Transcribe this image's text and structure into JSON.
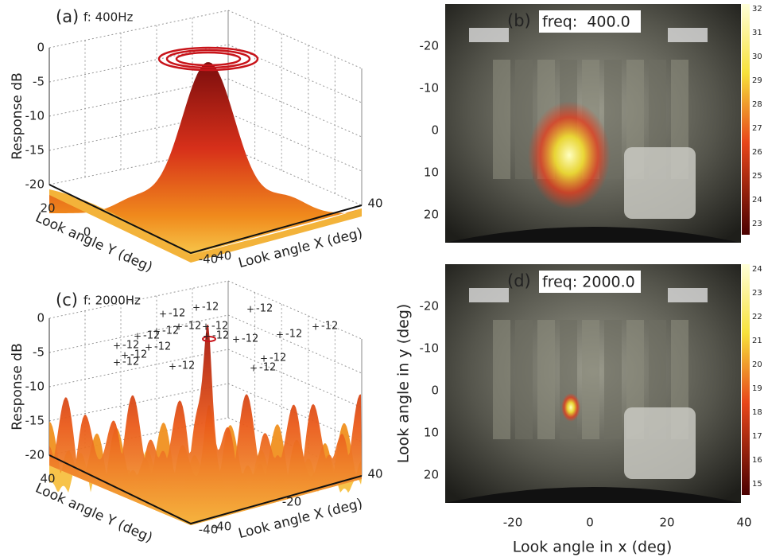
{
  "panels": [
    {
      "label": "(a)",
      "title": "f: 400Hz",
      "z_label": "Response dB",
      "y_label": "Look angle Y (deg)",
      "x_label": "Look angle X (deg)",
      "z_ticks": [
        0,
        -5,
        -10,
        -15,
        -20
      ],
      "y_ticks": [
        20,
        0,
        -40
      ],
      "x_ticks": [
        -40,
        40
      ]
    },
    {
      "label": "(b)",
      "freq": "freq:  400.0",
      "y_ticks": [
        -20,
        -10,
        0,
        10,
        20
      ],
      "colorbar_ticks": [
        32,
        31,
        30,
        29,
        28,
        27,
        26,
        25,
        24,
        23
      ]
    },
    {
      "label": "(c)",
      "title": "f: 2000Hz",
      "z_label": "Response dB",
      "y_label": "Look angle Y (deg)",
      "x_label": "Look angle X (deg)",
      "z_ticks": [
        0,
        -5,
        -10,
        -15,
        -20
      ],
      "y_ticks": [
        40,
        -40
      ],
      "x_ticks": [
        -40,
        -20,
        40
      ],
      "contour_labels": [
        -12,
        -12,
        -12,
        -12,
        -12,
        -12,
        -12,
        -12,
        -12,
        -12,
        -12,
        -12,
        -12,
        -12,
        -12,
        -12,
        -12,
        -12
      ]
    },
    {
      "label": "(d)",
      "freq": "freq: 2000.0",
      "y_ticks": [
        -20,
        -10,
        0,
        10,
        20
      ],
      "colorbar_ticks": [
        24,
        23,
        22,
        21,
        20,
        19,
        18,
        17,
        16,
        15
      ],
      "x_ticks": [
        -20,
        0,
        20,
        40
      ],
      "y_label": "Look angle in y (deg)",
      "x_label": "Look angle in x (deg)"
    }
  ]
}
